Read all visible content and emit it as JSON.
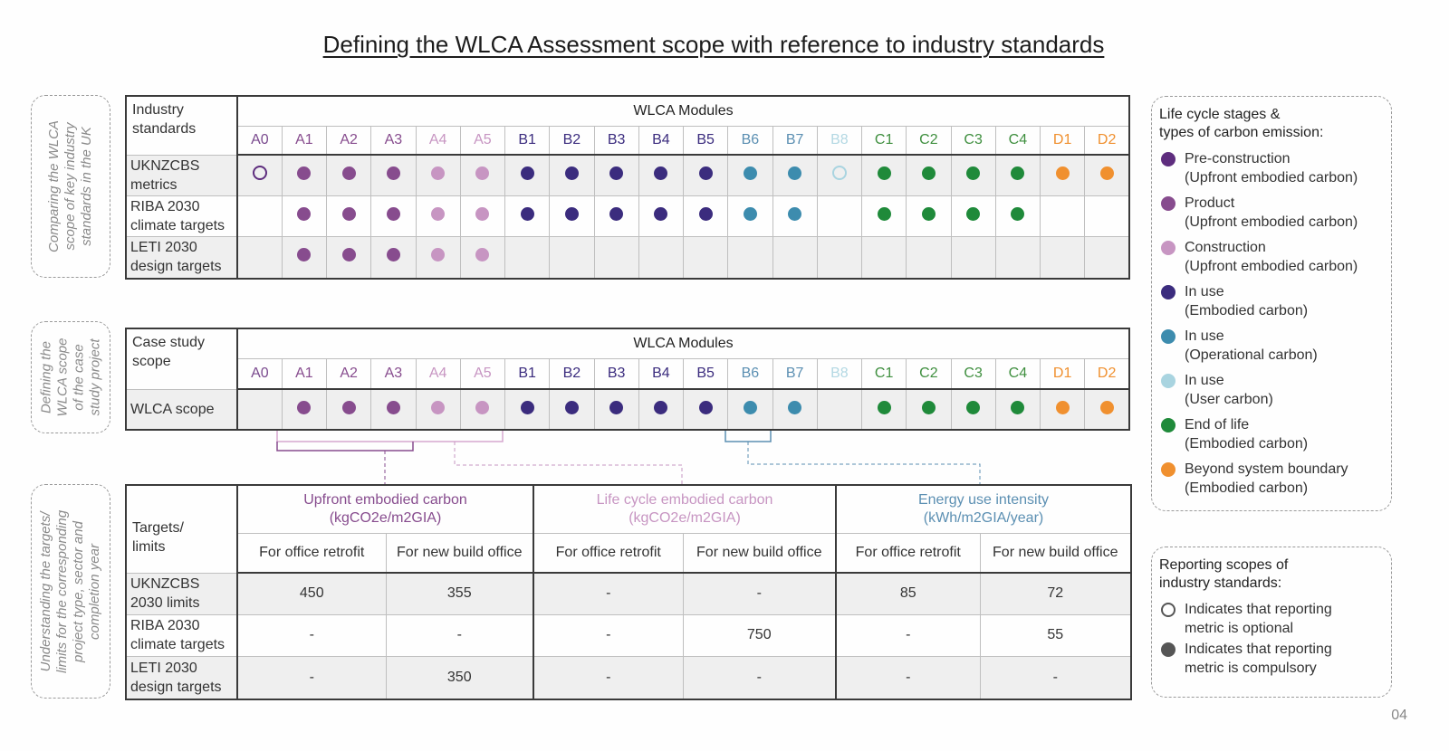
{
  "title": "Defining the WLCA Assessment scope with reference to industry standards",
  "page_number": "04",
  "side_labels": {
    "standards": [
      "Comparing the WLCA",
      "scope of key industry",
      "standards in the UK"
    ],
    "case_study": [
      "Defining the",
      "WLCA scope",
      "of the case",
      "study project"
    ],
    "targets": [
      "Understanding the targets/",
      "limits for the corresponding",
      "project type, sector and",
      "completion year"
    ]
  },
  "colors": {
    "pre_construction": "#5e2d7e",
    "product": "#874c8e",
    "construction": "#c795c2",
    "in_use_embodied": "#3b2c7e",
    "in_use_operational": "#3d8cae",
    "in_use_user": "#a9d4e0",
    "end_of_life": "#1f8a3a",
    "beyond": "#f0902f",
    "compulsory_legend": "#555555",
    "optional_legend": "#555555"
  },
  "modules": [
    {
      "code": "A0",
      "stage": "pre_construction",
      "text_color": "#7a4a8e"
    },
    {
      "code": "A1",
      "stage": "product",
      "text_color": "#874c8e"
    },
    {
      "code": "A2",
      "stage": "product",
      "text_color": "#874c8e"
    },
    {
      "code": "A3",
      "stage": "product",
      "text_color": "#874c8e"
    },
    {
      "code": "A4",
      "stage": "construction",
      "text_color": "#c795c2"
    },
    {
      "code": "A5",
      "stage": "construction",
      "text_color": "#c795c2"
    },
    {
      "code": "B1",
      "stage": "in_use_embodied",
      "text_color": "#3b2c7e"
    },
    {
      "code": "B2",
      "stage": "in_use_embodied",
      "text_color": "#3b2c7e"
    },
    {
      "code": "B3",
      "stage": "in_use_embodied",
      "text_color": "#3b2c7e"
    },
    {
      "code": "B4",
      "stage": "in_use_embodied",
      "text_color": "#3b2c7e"
    },
    {
      "code": "B5",
      "stage": "in_use_embodied",
      "text_color": "#3b2c7e"
    },
    {
      "code": "B6",
      "stage": "in_use_operational",
      "text_color": "#5b8fb2"
    },
    {
      "code": "B7",
      "stage": "in_use_operational",
      "text_color": "#5b8fb2"
    },
    {
      "code": "B8",
      "stage": "in_use_user",
      "text_color": "#b3d8e3"
    },
    {
      "code": "C1",
      "stage": "end_of_life",
      "text_color": "#3f8f3f"
    },
    {
      "code": "C2",
      "stage": "end_of_life",
      "text_color": "#3f8f3f"
    },
    {
      "code": "C3",
      "stage": "end_of_life",
      "text_color": "#3f8f3f"
    },
    {
      "code": "C4",
      "stage": "end_of_life",
      "text_color": "#3f8f3f"
    },
    {
      "code": "D1",
      "stage": "beyond",
      "text_color": "#f0902f"
    },
    {
      "code": "D2",
      "stage": "beyond",
      "text_color": "#f0902f"
    }
  ],
  "standards_table": {
    "corner_label": [
      "Industry",
      "standards"
    ],
    "modules_header": "WLCA Modules",
    "rows": [
      {
        "label": [
          "UKNZCBS",
          "metrics"
        ],
        "marks": [
          "optional",
          "compulsory",
          "compulsory",
          "compulsory",
          "compulsory",
          "compulsory",
          "compulsory",
          "compulsory",
          "compulsory",
          "compulsory",
          "compulsory",
          "compulsory",
          "compulsory",
          "optional",
          "compulsory",
          "compulsory",
          "compulsory",
          "compulsory",
          "compulsory",
          "compulsory"
        ]
      },
      {
        "label": [
          "RIBA 2030",
          "climate targets"
        ],
        "marks": [
          "",
          "compulsory",
          "compulsory",
          "compulsory",
          "compulsory",
          "compulsory",
          "compulsory",
          "compulsory",
          "compulsory",
          "compulsory",
          "compulsory",
          "compulsory",
          "compulsory",
          "",
          "compulsory",
          "compulsory",
          "compulsory",
          "compulsory",
          "",
          ""
        ]
      },
      {
        "label": [
          "LETI 2030",
          "design targets"
        ],
        "marks": [
          "",
          "compulsory",
          "compulsory",
          "compulsory",
          "compulsory",
          "compulsory",
          "",
          "",
          "",
          "",
          "",
          "",
          "",
          "",
          "",
          "",
          "",
          "",
          "",
          ""
        ]
      }
    ]
  },
  "case_study_table": {
    "corner_label": [
      "Case study",
      "scope"
    ],
    "modules_header": "WLCA Modules",
    "rows": [
      {
        "label": [
          "WLCA scope"
        ],
        "marks": [
          "",
          "compulsory",
          "compulsory",
          "compulsory",
          "compulsory",
          "compulsory",
          "compulsory",
          "compulsory",
          "compulsory",
          "compulsory",
          "compulsory",
          "compulsory",
          "compulsory",
          "",
          "compulsory",
          "compulsory",
          "compulsory",
          "compulsory",
          "compulsory",
          "compulsory"
        ]
      }
    ]
  },
  "targets_table": {
    "corner_label": [
      "Targets/",
      "limits"
    ],
    "categories": [
      {
        "name": "Upfront embodied carbon",
        "unit": "(kgCO2e/m2GIA)",
        "color": "#874c8e"
      },
      {
        "name": "Life cycle embodied carbon",
        "unit": "(kgCO2e/m2GIA)",
        "color": "#c795c2"
      },
      {
        "name": "Energy use intensity",
        "unit": "(kWh/m2GIA/year)",
        "color": "#5b8fb2"
      }
    ],
    "sub_headers": [
      "For office retrofit",
      "For new build office",
      "For office retrofit",
      "For new build office",
      "For office retrofit",
      "For new build office"
    ],
    "rows": [
      {
        "label": [
          "UKNZCBS",
          "2030 limits"
        ],
        "values": [
          "450",
          "355",
          "-",
          "-",
          "85",
          "72"
        ]
      },
      {
        "label": [
          "RIBA 2030",
          "climate targets"
        ],
        "values": [
          "-",
          "-",
          "-",
          "750",
          "-",
          "55"
        ]
      },
      {
        "label": [
          "LETI 2030",
          "design targets"
        ],
        "values": [
          "-",
          "350",
          "-",
          "-",
          "-",
          "-"
        ]
      }
    ]
  },
  "legend_stages": {
    "title": [
      "Life cycle stages &",
      "types of carbon emission:"
    ],
    "items": [
      {
        "stage": "pre_construction",
        "line1": "Pre-construction",
        "line2": "(Upfront embodied carbon)"
      },
      {
        "stage": "product",
        "line1": "Product",
        "line2": "(Upfront embodied carbon)"
      },
      {
        "stage": "construction",
        "line1": "Construction",
        "line2": "(Upfront embodied carbon)"
      },
      {
        "stage": "in_use_embodied",
        "line1": "In use",
        "line2": "(Embodied carbon)"
      },
      {
        "stage": "in_use_operational",
        "line1": "In use",
        "line2": "(Operational carbon)"
      },
      {
        "stage": "in_use_user",
        "line1": "In use",
        "line2": "(User carbon)"
      },
      {
        "stage": "end_of_life",
        "line1": "End of life",
        "line2": "(Embodied carbon)"
      },
      {
        "stage": "beyond",
        "line1": "Beyond system boundary",
        "line2": "(Embodied carbon)"
      }
    ]
  },
  "legend_reporting": {
    "title": [
      "Reporting scopes of",
      "industry standards:"
    ],
    "items": [
      {
        "type": "optional",
        "line1": "Indicates that reporting",
        "line2": "metric is optional"
      },
      {
        "type": "compulsory",
        "line1": "Indicates that reporting",
        "line2": "metric is compulsory"
      }
    ]
  }
}
